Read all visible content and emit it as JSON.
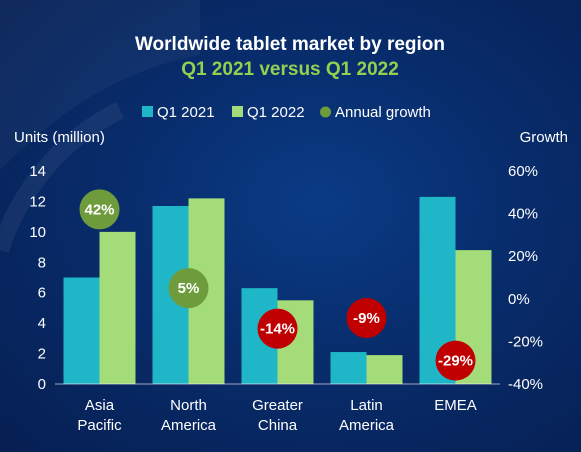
{
  "chart_data": {
    "type": "bar",
    "title": "Worldwide tablet market by region",
    "subtitle": "Q1 2021 versus Q1 2022",
    "ylabel": "Units (million)",
    "y2label": "Growth",
    "ylim": [
      0,
      14
    ],
    "yticks": [
      "0",
      "2",
      "4",
      "6",
      "8",
      "10",
      "12",
      "14"
    ],
    "y2lim": [
      -40,
      60
    ],
    "y2ticks": [
      "-40%",
      "-20%",
      "0%",
      "20%",
      "40%",
      "60%"
    ],
    "categories": [
      [
        "Asia",
        "Pacific"
      ],
      [
        "North",
        "America"
      ],
      [
        "Greater",
        "China"
      ],
      [
        "Latin",
        "America"
      ],
      [
        "EMEA"
      ]
    ],
    "series": [
      {
        "name": "Q1 2021",
        "color": "#1fb6c8",
        "values": [
          7.0,
          11.7,
          6.3,
          2.1,
          12.3
        ]
      },
      {
        "name": "Q1 2022",
        "color": "#a3dc78",
        "values": [
          10.0,
          12.2,
          5.5,
          1.9,
          8.8
        ]
      }
    ],
    "growth": {
      "name": "Annual growth",
      "values": [
        42,
        5,
        -14,
        -9,
        -29
      ],
      "labels": [
        "42%",
        "5%",
        "-14%",
        "-9%",
        "-29%"
      ],
      "positive_color": "#6e9c3c",
      "negative_color": "#c00000"
    },
    "legend_placement": "top-center",
    "grid": false
  }
}
